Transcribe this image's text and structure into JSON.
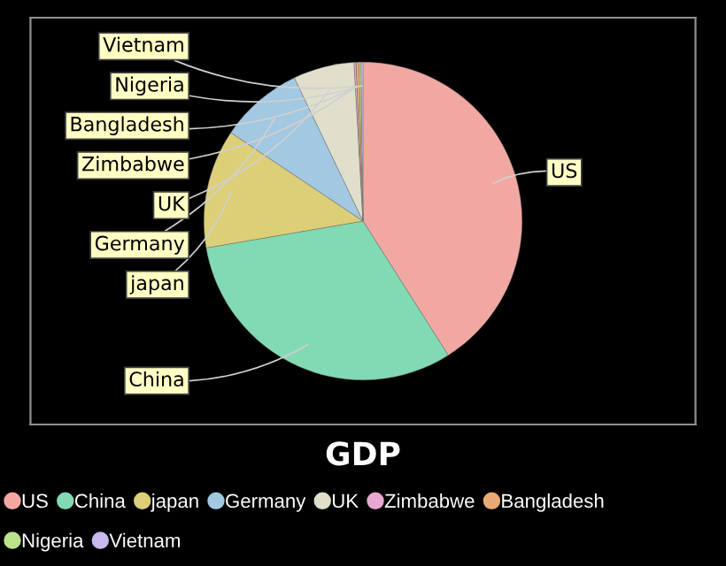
{
  "chart_data": {
    "type": "pie",
    "title": "GDP",
    "categories": [
      "US",
      "China",
      "japan",
      "Germany",
      "UK",
      "Zimbabwe",
      "Bangladesh",
      "Nigeria",
      "Vietnam"
    ],
    "values": [
      41.0,
      31.3,
      12.1,
      8.5,
      6.2,
      0.2,
      0.3,
      0.2,
      0.2
    ],
    "colors": [
      "#f2a8a2",
      "#82dab4",
      "#dccf78",
      "#a2c8e2",
      "#e0dfcc",
      "#e8a8d2",
      "#e8aa72",
      "#bce38c",
      "#c8b8f0"
    ],
    "legend": "bottom"
  }
}
